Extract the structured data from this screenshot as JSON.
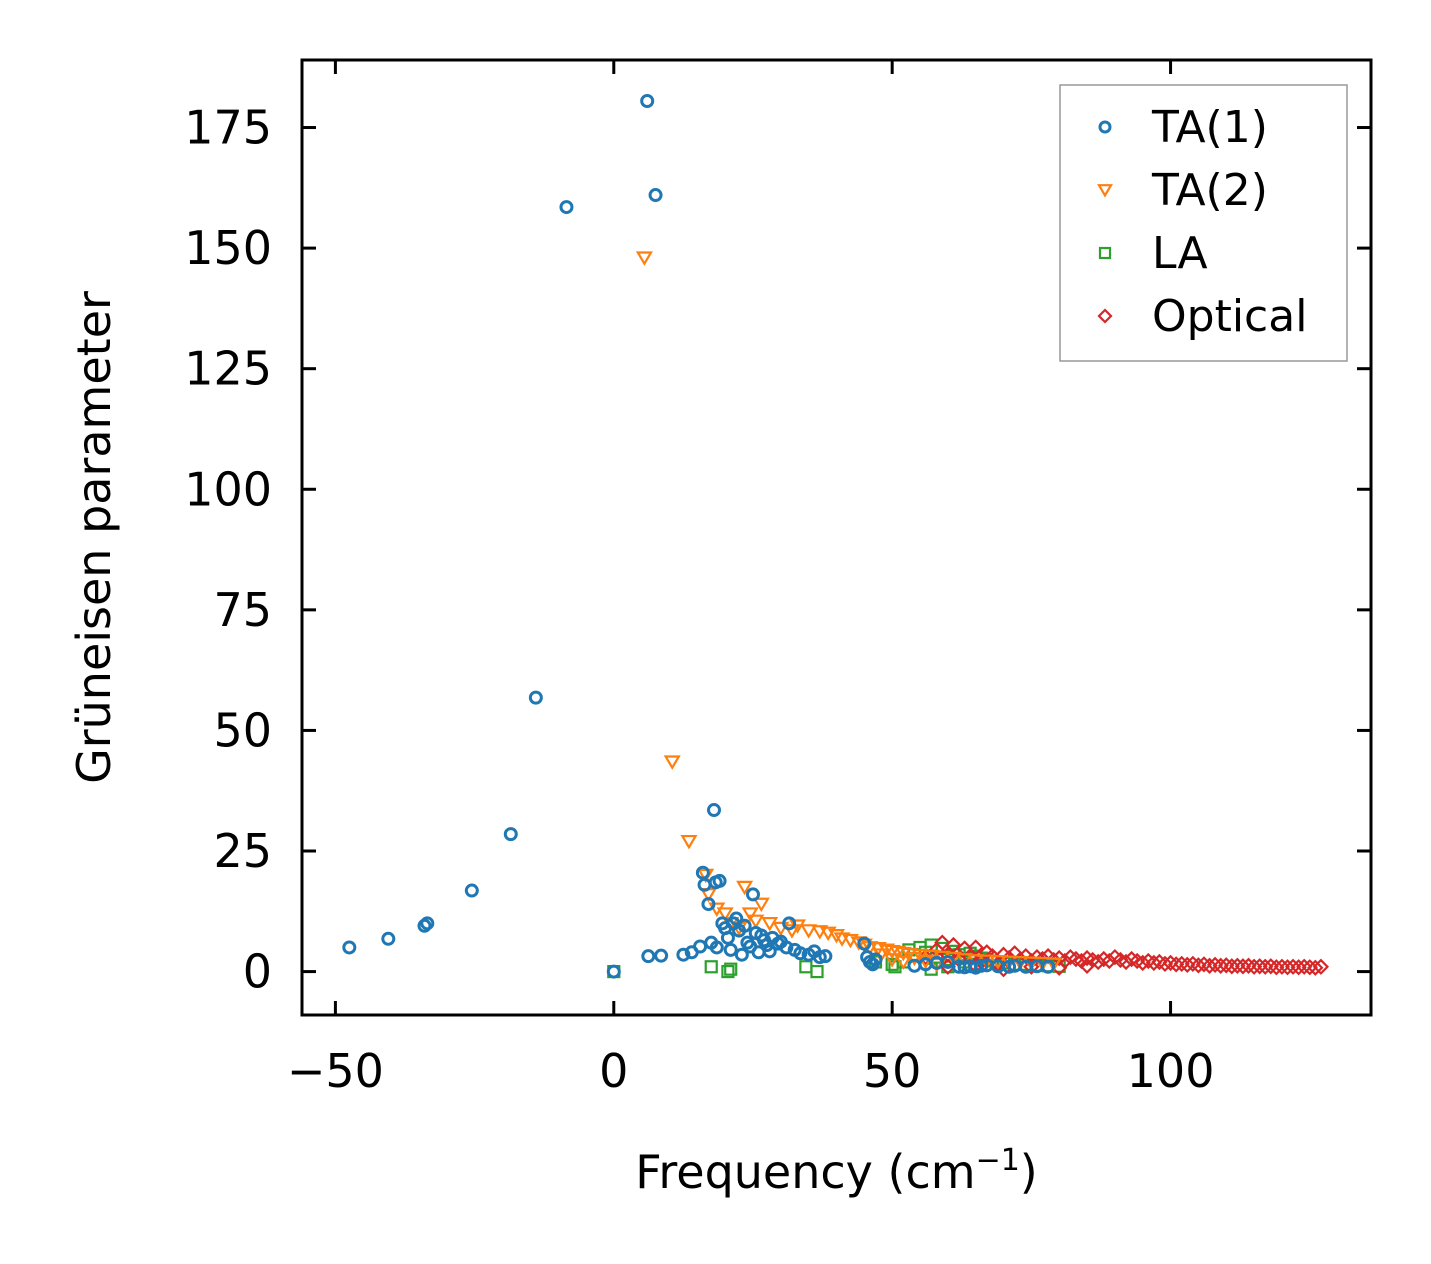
{
  "chart_data": {
    "type": "scatter",
    "title": "",
    "xlabel": "Frequency (cm",
    "xlabel_sup": "−1",
    "xlabel_close": ")",
    "ylabel": "Grüneisen parameter",
    "xlim": [
      -56,
      136
    ],
    "ylim": [
      -9,
      189
    ],
    "xticks": [
      -50,
      0,
      50,
      100
    ],
    "xtick_labels": [
      "−50",
      "0",
      "50",
      "100"
    ],
    "yticks": [
      0,
      25,
      50,
      75,
      100,
      125,
      150,
      175
    ],
    "ytick_labels": [
      "0",
      "25",
      "50",
      "75",
      "100",
      "125",
      "150",
      "175"
    ],
    "legend_position": "top-right",
    "grid": false,
    "series": [
      {
        "name": "TA(1)",
        "marker": "circle",
        "color": "#1f77b4",
        "points": [
          [
            -47.5,
            5
          ],
          [
            -40.5,
            6.8
          ],
          [
            -34,
            9.5
          ],
          [
            -33.5,
            10
          ],
          [
            -25.5,
            16.8
          ],
          [
            -18.5,
            28.5
          ],
          [
            -14,
            56.8
          ],
          [
            -8.5,
            158.5
          ],
          [
            6,
            180.5
          ],
          [
            7.5,
            161
          ],
          [
            0,
            0
          ],
          [
            6.2,
            3.2
          ],
          [
            8.5,
            3.3
          ],
          [
            12.5,
            3.5
          ],
          [
            14,
            4
          ],
          [
            15.5,
            5.2
          ],
          [
            16,
            20.5
          ],
          [
            16.3,
            18
          ],
          [
            17,
            14
          ],
          [
            18,
            33.5
          ],
          [
            18.3,
            18.5
          ],
          [
            19,
            18.8
          ],
          [
            17.5,
            6
          ],
          [
            18.5,
            5
          ],
          [
            19.5,
            10
          ],
          [
            20,
            9
          ],
          [
            20.5,
            7
          ],
          [
            21,
            4.5
          ],
          [
            21.5,
            10
          ],
          [
            22,
            11
          ],
          [
            22.5,
            8.5
          ],
          [
            23,
            3.5
          ],
          [
            23.5,
            9.5
          ],
          [
            24,
            6
          ],
          [
            24.5,
            5.2
          ],
          [
            25,
            16
          ],
          [
            25.5,
            8
          ],
          [
            26,
            4
          ],
          [
            26.5,
            7.5
          ],
          [
            27,
            6.5
          ],
          [
            27.5,
            5.5
          ],
          [
            28,
            4.2
          ],
          [
            28.5,
            7
          ],
          [
            29.5,
            5.8
          ],
          [
            30,
            6.2
          ],
          [
            31,
            5
          ],
          [
            31.5,
            10
          ],
          [
            32.5,
            4.5
          ],
          [
            33.5,
            3.8
          ],
          [
            35,
            3.5
          ],
          [
            36,
            4.2
          ],
          [
            37,
            3
          ],
          [
            38,
            3.2
          ],
          [
            45,
            5.8
          ],
          [
            45.5,
            3
          ],
          [
            46,
            2
          ],
          [
            46.5,
            1.5
          ],
          [
            47,
            2.5
          ],
          [
            54,
            1.2
          ],
          [
            56,
            1.5
          ],
          [
            58,
            1.8
          ],
          [
            60,
            2
          ],
          [
            62,
            1
          ],
          [
            63,
            0.9
          ],
          [
            64,
            1.1
          ],
          [
            65,
            0.8
          ],
          [
            66,
            1.2
          ],
          [
            67,
            1.3
          ],
          [
            69,
            1.1
          ],
          [
            71,
            1.0
          ],
          [
            72,
            1.2
          ],
          [
            74,
            1.0
          ],
          [
            76,
            1.1
          ],
          [
            78,
            1.0
          ]
        ]
      },
      {
        "name": "TA(2)",
        "marker": "triangle-down",
        "color": "#ff7f0e",
        "points": [
          [
            5.5,
            148
          ],
          [
            10.5,
            43.5
          ],
          [
            13.5,
            27
          ],
          [
            16.5,
            20
          ],
          [
            17,
            16
          ],
          [
            18.5,
            13
          ],
          [
            20,
            12
          ],
          [
            21,
            10
          ],
          [
            22.5,
            9
          ],
          [
            23.5,
            17.5
          ],
          [
            24.5,
            12
          ],
          [
            25.5,
            10.5
          ],
          [
            26.5,
            14
          ],
          [
            28,
            10
          ],
          [
            30,
            9
          ],
          [
            32,
            8.5
          ],
          [
            33,
            9.5
          ],
          [
            35,
            8.5
          ],
          [
            37,
            8.3
          ],
          [
            38.5,
            8
          ],
          [
            40,
            7.5
          ],
          [
            41,
            6.8
          ],
          [
            42.5,
            6.5
          ],
          [
            44,
            6
          ],
          [
            45,
            5.5
          ],
          [
            46,
            5
          ],
          [
            47.5,
            4.8
          ],
          [
            49,
            4.5
          ],
          [
            50,
            4.2
          ],
          [
            51,
            4
          ],
          [
            52,
            3.8
          ],
          [
            53,
            3.6
          ],
          [
            55,
            3.4
          ],
          [
            57,
            3.2
          ],
          [
            59,
            3
          ],
          [
            61,
            2.8
          ],
          [
            63,
            2.5
          ],
          [
            65,
            2.3
          ],
          [
            67,
            2.2
          ],
          [
            69,
            2.1
          ],
          [
            71,
            2
          ],
          [
            73,
            1.9
          ],
          [
            75,
            1.8
          ],
          [
            77,
            1.7
          ],
          [
            79,
            1.6
          ],
          [
            48,
            3.5
          ],
          [
            50,
            2.5
          ],
          [
            52,
            2.0
          ],
          [
            54,
            2.8
          ],
          [
            56,
            2.2
          ],
          [
            58,
            1.5
          ]
        ]
      },
      {
        "name": "LA",
        "marker": "square",
        "color": "#2ca02c",
        "points": [
          [
            0,
            0
          ],
          [
            17.5,
            1
          ],
          [
            20.5,
            0
          ],
          [
            21,
            0.5
          ],
          [
            34.5,
            1
          ],
          [
            36.5,
            0
          ],
          [
            47,
            2
          ],
          [
            50,
            1.5
          ],
          [
            50.5,
            1
          ],
          [
            52,
            2
          ],
          [
            53,
            4.5
          ],
          [
            54,
            3.5
          ],
          [
            55,
            5
          ],
          [
            56,
            4
          ],
          [
            57,
            5.5
          ],
          [
            58,
            3
          ],
          [
            59,
            4.8
          ],
          [
            60,
            2.5
          ],
          [
            61,
            4.2
          ],
          [
            62,
            3.5
          ],
          [
            63,
            2
          ],
          [
            64,
            3.8
          ],
          [
            65,
            3.2
          ],
          [
            66,
            2.8
          ],
          [
            67,
            2.5
          ],
          [
            68,
            2.2
          ],
          [
            69,
            2
          ],
          [
            70,
            1.8
          ],
          [
            72,
            1.5
          ],
          [
            74,
            1.5
          ],
          [
            76,
            1.3
          ],
          [
            78,
            1.2
          ],
          [
            80,
            1.1
          ],
          [
            57,
            0.5
          ],
          [
            60,
            1
          ],
          [
            65,
            1.5
          ]
        ]
      },
      {
        "name": "Optical",
        "marker": "diamond",
        "color": "#d62728",
        "points": [
          [
            56,
            3
          ],
          [
            58,
            4.5
          ],
          [
            59,
            6
          ],
          [
            60,
            3.5
          ],
          [
            61,
            5.5
          ],
          [
            62,
            2.5
          ],
          [
            63,
            4.8
          ],
          [
            64,
            3
          ],
          [
            65,
            5
          ],
          [
            66,
            2
          ],
          [
            67,
            4
          ],
          [
            68,
            3.2
          ],
          [
            69,
            1.5
          ],
          [
            70,
            3.5
          ],
          [
            71,
            2.8
          ],
          [
            72,
            3.8
          ],
          [
            73,
            2.5
          ],
          [
            74,
            3.2
          ],
          [
            75,
            2.2
          ],
          [
            76,
            3
          ],
          [
            77,
            2.6
          ],
          [
            78,
            3.2
          ],
          [
            79,
            2.4
          ],
          [
            80,
            2.8
          ],
          [
            81,
            2.2
          ],
          [
            82,
            3
          ],
          [
            83,
            2.6
          ],
          [
            84,
            2.2
          ],
          [
            85,
            2.8
          ],
          [
            86,
            2.4
          ],
          [
            87,
            2
          ],
          [
            88,
            2.6
          ],
          [
            89,
            2.2
          ],
          [
            90,
            3
          ],
          [
            91,
            2.4
          ],
          [
            92,
            2
          ],
          [
            93,
            2.6
          ],
          [
            94,
            2.2
          ],
          [
            95,
            1.8
          ],
          [
            96,
            2.2
          ],
          [
            97,
            1.8
          ],
          [
            98,
            2
          ],
          [
            99,
            1.6
          ],
          [
            100,
            1.8
          ],
          [
            101,
            1.5
          ],
          [
            102,
            1.6
          ],
          [
            103,
            1.4
          ],
          [
            104,
            1.6
          ],
          [
            105,
            1.3
          ],
          [
            106,
            1.5
          ],
          [
            107,
            1.2
          ],
          [
            108,
            1.4
          ],
          [
            109,
            1.2
          ],
          [
            110,
            1.3
          ],
          [
            111,
            1.1
          ],
          [
            112,
            1.2
          ],
          [
            113,
            1.1
          ],
          [
            114,
            1.2
          ],
          [
            115,
            1
          ],
          [
            116,
            1.1
          ],
          [
            117,
            1
          ],
          [
            118,
            1.1
          ],
          [
            119,
            0.9
          ],
          [
            120,
            1
          ],
          [
            121,
            0.9
          ],
          [
            122,
            1
          ],
          [
            123,
            0.9
          ],
          [
            124,
            1
          ],
          [
            125,
            0.9
          ],
          [
            126,
            0.8
          ],
          [
            127,
            1
          ],
          [
            60,
            1
          ],
          [
            65,
            1.2
          ],
          [
            70,
            0.5
          ],
          [
            75,
            1
          ],
          [
            80,
            0.8
          ],
          [
            85,
            1.2
          ]
        ]
      }
    ]
  }
}
